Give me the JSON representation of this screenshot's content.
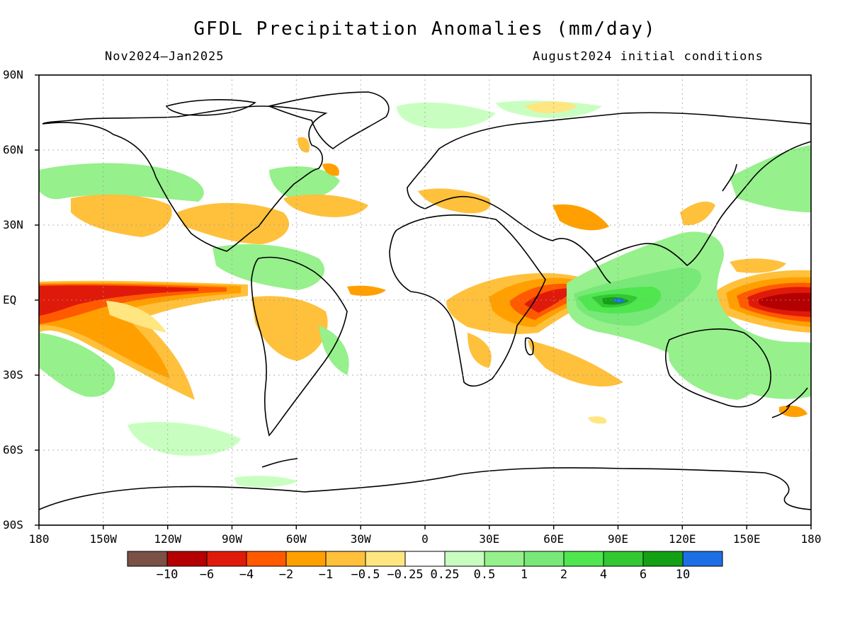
{
  "title": "GFDL Precipitation Anomalies (mm/day)",
  "period": "Nov2024–Jan2025",
  "init_conditions": "August2024 initial conditions",
  "y_ticks": [
    "90N",
    "60N",
    "30N",
    "EQ",
    "30S",
    "60S",
    "90S"
  ],
  "x_ticks": [
    "180",
    "150W",
    "120W",
    "90W",
    "60W",
    "30W",
    "0",
    "30E",
    "60E",
    "90E",
    "120E",
    "150E",
    "180"
  ],
  "colorbar": {
    "colors": [
      "#7b5046",
      "#b40000",
      "#e01a0a",
      "#ff5a00",
      "#ffa000",
      "#ffc03c",
      "#ffe680",
      "#ffffff",
      "#c8ffc0",
      "#96f08c",
      "#78e878",
      "#50e650",
      "#32c832",
      "#14a014",
      "#1e6ee6"
    ],
    "labels": [
      "−10",
      "−6",
      "−4",
      "−2",
      "−1",
      "−0.5",
      "−0.25",
      "0.25",
      "0.5",
      "1",
      "2",
      "4",
      "6",
      "10"
    ]
  },
  "map": {
    "lon_range": [
      -180,
      180
    ],
    "lat_range": [
      -90,
      90
    ],
    "grid_lon_step": 30,
    "grid_lat_step": 30,
    "grid_style": "dotted",
    "coastlines": "black"
  }
}
